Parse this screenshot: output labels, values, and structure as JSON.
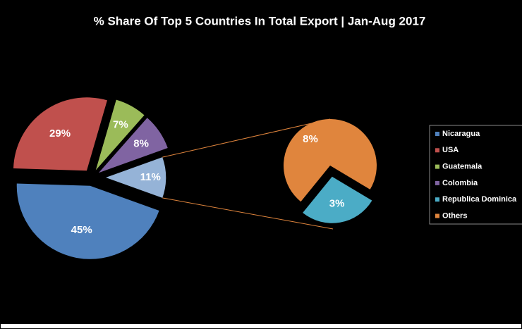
{
  "chart_data": {
    "type": "pie-of-pie",
    "title": "% Share Of Top 5 Countries In Total Export | Jan-Aug 2017",
    "primary": {
      "categories": [
        "Nicaragua",
        "USA",
        "Guatemala",
        "Colombia"
      ],
      "values": [
        45,
        29,
        7,
        8
      ],
      "value_labels": [
        "45%",
        "29%",
        "7%",
        "8%"
      ],
      "colors": [
        "#4f81bd",
        "#c0504d",
        "#9bbb59",
        "#8064a2"
      ]
    },
    "group": {
      "value": 11,
      "value_label": "11%",
      "color": "#95b3d7"
    },
    "secondary": {
      "categories": [
        "Republica Dominica",
        "Others"
      ],
      "values": [
        3,
        8
      ],
      "value_labels": [
        "3%",
        "8%"
      ],
      "colors": [
        "#4bacc6",
        "#e0853d"
      ]
    },
    "legend": "right"
  }
}
